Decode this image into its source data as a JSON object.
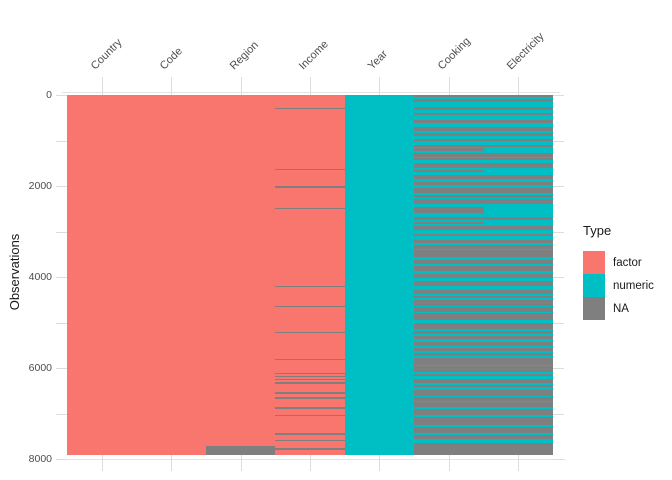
{
  "figure": {
    "y_axis_title": "Observations",
    "legend": {
      "title": "Type"
    }
  },
  "chart_data": {
    "type": "heatmap",
    "variant": "visdat-datatype-missingness",
    "title": "",
    "xlabel": "",
    "ylabel": "Observations",
    "x_categories": [
      "Country",
      "Code",
      "Region",
      "Income",
      "Year",
      "Cooking",
      "Electricity"
    ],
    "y_axis_reversed": true,
    "y_range": [
      0,
      8000
    ],
    "y_ticks_major": [
      0,
      2000,
      4000,
      6000,
      8000
    ],
    "y_tick_labels": [
      "0",
      "2000",
      "4000",
      "6000",
      "8000"
    ],
    "y_ticks_minor": [
      1000,
      3000,
      5000,
      7000
    ],
    "rows_total": 7900,
    "grid": "minimal-light",
    "legend_position": "right",
    "legend_title": "Type",
    "legend_entries": [
      {
        "label": "factor",
        "color": "#F8766D"
      },
      {
        "label": "numeric",
        "color": "#00BFC4"
      },
      {
        "label": "NA",
        "color": "#7F7F7F"
      }
    ],
    "colors": {
      "factor": "#F8766D",
      "numeric": "#00BFC4",
      "na": "#7F7F7F"
    },
    "columns": [
      {
        "name": "Country",
        "type": "factor",
        "na_rows": [],
        "na_row_ranges": []
      },
      {
        "name": "Code",
        "type": "factor",
        "na_rows": [],
        "na_row_ranges": []
      },
      {
        "name": "Region",
        "type": "factor",
        "na_rows": [],
        "na_row_ranges": [
          [
            7700,
            7900
          ]
        ]
      },
      {
        "name": "Income",
        "type": "factor",
        "na_rows": [
          280,
          1620,
          2010,
          2480,
          4190,
          4630,
          5210,
          5800,
          6110,
          6170,
          6240,
          6310,
          6530,
          6640,
          6860,
          7030,
          7430,
          7580,
          7760
        ],
        "na_row_ranges": []
      },
      {
        "name": "Year",
        "type": "numeric",
        "na_rows": [],
        "na_row_ranges": []
      },
      {
        "name": "Cooking",
        "type": "numeric",
        "na_pattern": {
          "style": "dense-stripes",
          "na_fraction_top": 0.5,
          "na_fraction_bottom": 0.75,
          "solid_na_from": 7670
        }
      },
      {
        "name": "Electricity",
        "type": "numeric",
        "na_pattern": {
          "style": "dense-stripes",
          "na_fraction_top": 0.5,
          "na_fraction_bottom": 0.75,
          "solid_na_from": 7670
        }
      }
    ],
    "stripe_seed": 42
  }
}
